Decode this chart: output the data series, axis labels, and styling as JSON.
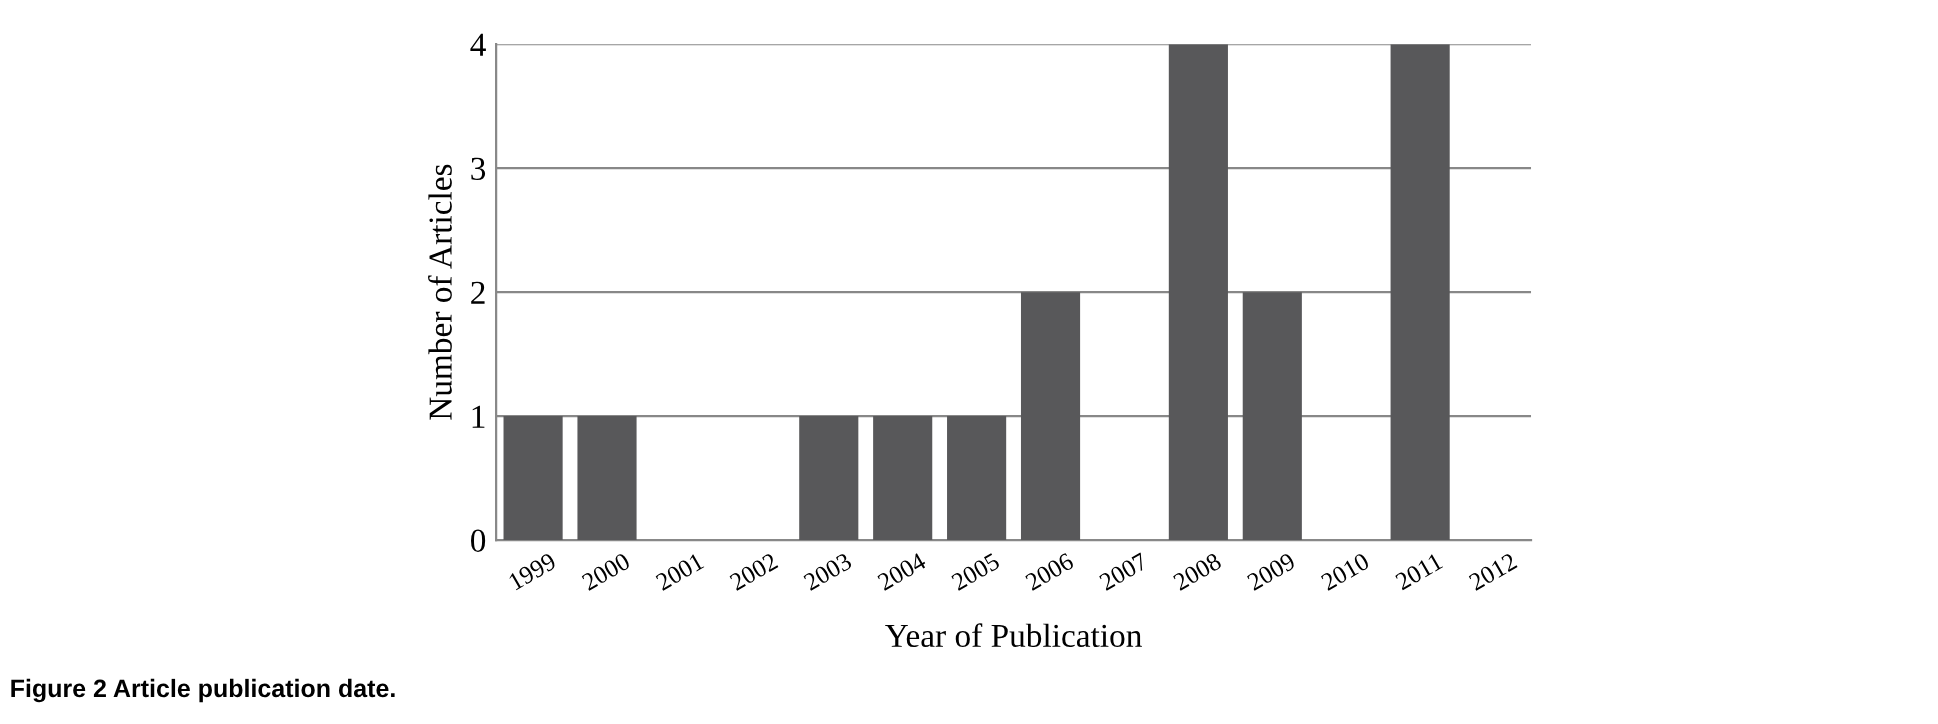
{
  "chart_data": {
    "type": "bar",
    "xlabel": "Year of Publication",
    "ylabel": "Number of Articles",
    "categories": [
      "1999",
      "2000",
      "2001",
      "2002",
      "2003",
      "2004",
      "2005",
      "2006",
      "2007",
      "2008",
      "2009",
      "2010",
      "2011",
      "2012"
    ],
    "values": [
      1,
      1,
      0,
      0,
      1,
      1,
      1,
      2,
      0,
      4,
      2,
      0,
      4,
      0
    ],
    "color": "#58585a",
    "ylim": [
      0,
      4
    ],
    "yticks": [
      0,
      1,
      2,
      3,
      4
    ],
    "grid": "y",
    "annotations": [
      "Figure 2 Article publication date."
    ]
  }
}
